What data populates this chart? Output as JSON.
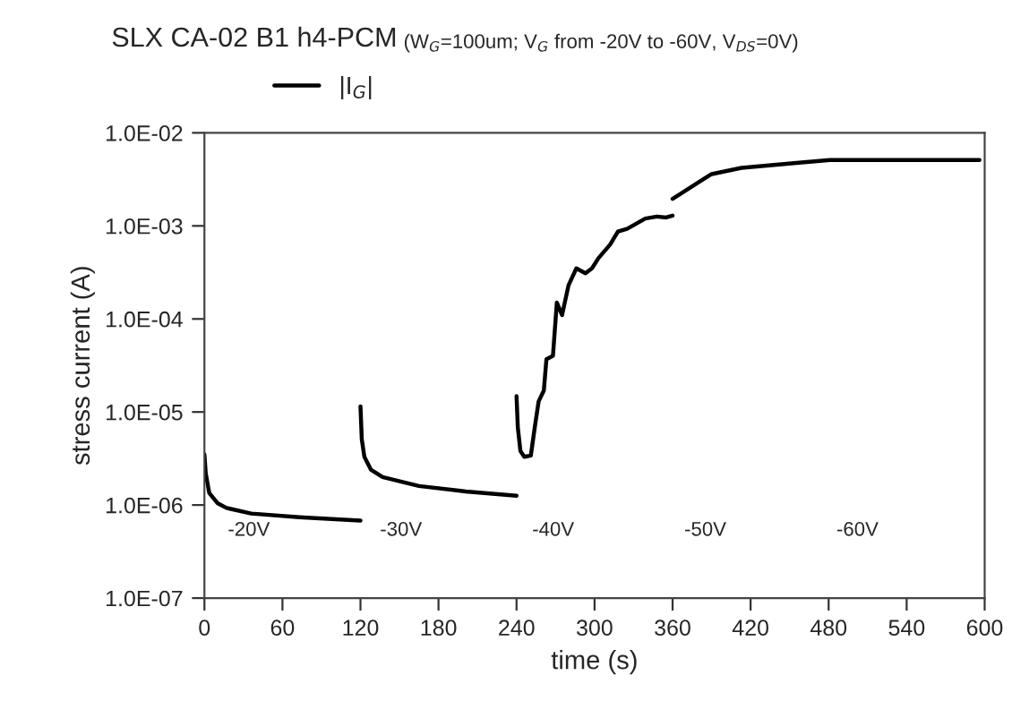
{
  "chart_data": {
    "type": "line",
    "title": "SLX CA-02 B1 h4-PCM",
    "subtitle": "(W$_{G}$=100um; V$_{G}$ from -20V to -60V, V$_{DS}$=0V)",
    "xlabel": "time (s)",
    "ylabel": "stress current (A)",
    "series": [
      {
        "name": "|I$_{G}$|",
        "color": "#000000",
        "x": [
          0,
          1,
          3.7,
          10,
          17,
          36,
          73,
          120,
          null,
          120,
          121,
          123,
          128,
          137,
          165,
          201,
          240,
          null,
          240,
          241,
          243,
          246,
          251,
          254,
          257,
          261,
          263,
          268,
          271,
          275,
          280,
          286,
          293,
          298,
          303,
          312,
          318,
          325,
          339,
          348,
          355,
          360,
          null,
          360,
          381,
          390,
          413,
          436,
          459,
          481,
          596
        ],
        "values": [
          3.5e-06,
          2.2e-06,
          1.35e-06,
          1.05e-06,
          9.3e-07,
          8.1e-07,
          7.4e-07,
          6.8e-07,
          null,
          1.15e-05,
          5.1e-06,
          3.3e-06,
          2.4e-06,
          2e-06,
          1.6e-06,
          1.4e-06,
          1.26e-06,
          null,
          1.48e-05,
          6.8e-06,
          3.8e-06,
          3.3e-06,
          3.4e-06,
          6.8e-06,
          1.3e-05,
          1.7e-05,
          3.7e-05,
          4e-05,
          0.00015,
          0.00011,
          0.00023,
          0.00035,
          0.00031,
          0.00035,
          0.00045,
          0.00063,
          0.00087,
          0.00093,
          0.0012,
          0.00126,
          0.00123,
          0.00129,
          null,
          0.00195,
          0.003,
          0.0036,
          0.0042,
          0.0045,
          0.0048,
          0.0051,
          0.0051
        ]
      }
    ],
    "annotations": [
      "-20V",
      "-30V",
      "-40V",
      "-50V",
      "-60V"
    ],
    "log": "y",
    "xlim": [
      0,
      600
    ],
    "xticks": [
      0,
      60,
      120,
      180,
      240,
      300,
      360,
      420,
      480,
      540,
      600
    ],
    "ylim": [
      1e-07,
      0.01
    ],
    "yticks": [
      {
        "value": 1e-07,
        "label": "1.0E-07"
      },
      {
        "value": 1e-06,
        "label": "1.0E-06"
      },
      {
        "value": 1e-05,
        "label": "1.0E-05"
      },
      {
        "value": 0.0001,
        "label": "1.0E-04"
      },
      {
        "value": 0.001,
        "label": "1.0E-03"
      },
      {
        "value": 0.01,
        "label": "1.0E-02"
      }
    ],
    "grid": false,
    "legend": "top",
    "marker": "none",
    "line_style": "solid"
  }
}
